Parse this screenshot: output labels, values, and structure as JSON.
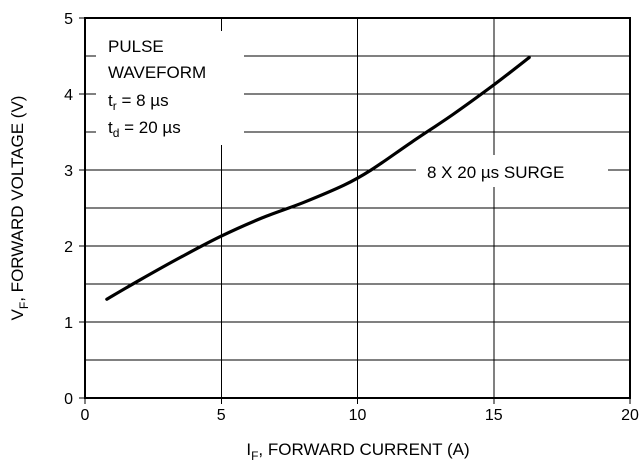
{
  "chart_data": {
    "type": "line",
    "xlabel": {
      "main": "I",
      "sub": "F",
      "rest": ", FORWARD CURRENT (A)"
    },
    "ylabel": {
      "main": "V",
      "sub": "F",
      "rest": ", FORWARD VOLTAGE (V)"
    },
    "xlim": [
      0,
      20
    ],
    "ylim": [
      0,
      5
    ],
    "x_ticks": [
      "0",
      "5",
      "10",
      "15",
      "20"
    ],
    "y_ticks": [
      "0",
      "1",
      "2",
      "3",
      "4",
      "5"
    ],
    "grid": true,
    "series": [
      {
        "x": [
          0.8,
          2.0,
          3.5,
          5.0,
          6.5,
          8.0,
          9.5,
          10.5,
          12.0,
          13.5,
          15.0,
          16.3
        ],
        "y": [
          1.3,
          1.55,
          1.85,
          2.13,
          2.37,
          2.57,
          2.8,
          3.0,
          3.37,
          3.73,
          4.12,
          4.48
        ]
      }
    ],
    "annotations": {
      "pulse_box": {
        "line1": "PULSE",
        "line2": "WAVEFORM",
        "tr_main": "t",
        "tr_sub": "r",
        "tr_rest": " = 8 µs",
        "td_main": "t",
        "td_sub": "d",
        "td_rest": " = 20 µs"
      },
      "surge_label": "8 X 20 µs SURGE"
    }
  }
}
